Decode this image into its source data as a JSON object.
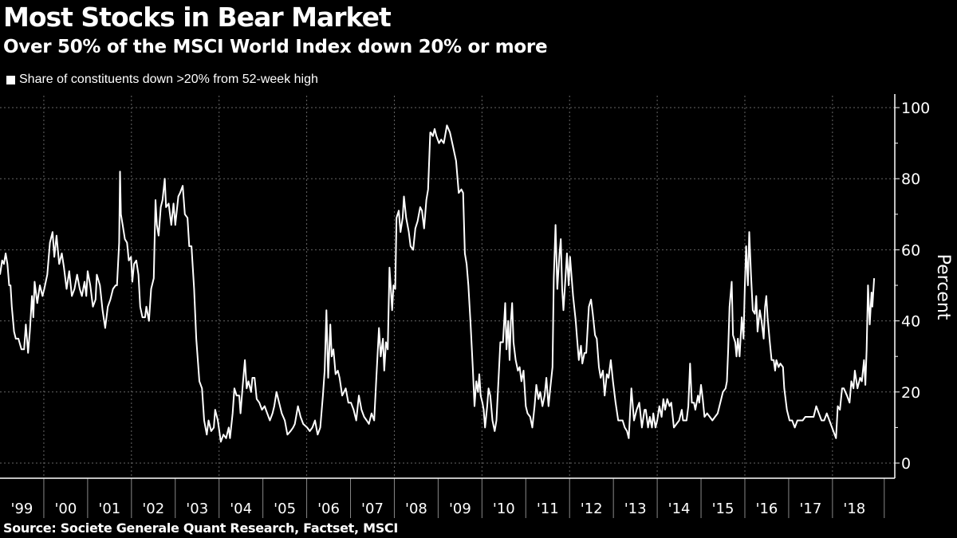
{
  "title": "Most Stocks in Bear Market",
  "subtitle": "Over 50% of the MSCI World Index down 20% or more",
  "source": "Source: Societe Generale Quant Research, Factset, MSCI",
  "chart_data": {
    "type": "line",
    "title": "Most Stocks in Bear Market",
    "subtitle": "Over 50% of the MSCI World Index down 20% or more",
    "ylabel": "Percent",
    "ylim": [
      0,
      100
    ],
    "yticks": [
      0,
      20,
      40,
      60,
      80,
      100
    ],
    "y_axis_side": "right",
    "xlim": [
      1999.0,
      2019.0
    ],
    "xtick_labels": [
      "'99",
      "'00",
      "'01",
      "'02",
      "'03",
      "'04",
      "'05",
      "'06",
      "'07",
      "'08",
      "'09",
      "'10",
      "'11",
      "'12",
      "'13",
      "'14",
      "'15",
      "'16",
      "'17",
      "'18"
    ],
    "grid": true,
    "legend_position": "top-left",
    "colors": {
      "background": "#000000",
      "line": "#ffffff",
      "grid": "#666666"
    },
    "series": [
      {
        "name": "Share of constituents down >20% from 52-week high",
        "x": [
          1999.0,
          1999.05,
          1999.09,
          1999.13,
          1999.17,
          1999.21,
          1999.24,
          1999.27,
          1999.32,
          1999.36,
          1999.42,
          1999.49,
          1999.55,
          1999.59,
          1999.64,
          1999.68,
          1999.73,
          1999.76,
          1999.79,
          1999.85,
          1999.91,
          1999.97,
          2000.01,
          2000.08,
          2000.14,
          2000.2,
          2000.24,
          2000.29,
          2000.35,
          2000.41,
          2000.46,
          2000.52,
          2000.58,
          2000.64,
          2000.7,
          2000.76,
          2000.82,
          2000.87,
          2000.93,
          2000.97,
          2001.0,
          2001.06,
          2001.12,
          2001.18,
          2001.21,
          2001.28,
          2001.34,
          2001.4,
          2001.46,
          2001.52,
          2001.58,
          2001.64,
          2001.67,
          2001.72,
          2001.74,
          2001.76,
          2001.8,
          2001.85,
          2001.9,
          2001.94,
          2001.99,
          2002.02,
          2002.06,
          2002.11,
          2002.16,
          2002.2,
          2002.25,
          2002.31,
          2002.34,
          2002.4,
          2002.45,
          2002.51,
          2002.55,
          2002.58,
          2002.62,
          2002.67,
          2002.71,
          2002.76,
          2002.79,
          2002.85,
          2002.91,
          2002.96,
          2003.0,
          2003.07,
          2003.11,
          2003.17,
          2003.22,
          2003.28,
          2003.32,
          2003.37,
          2003.43,
          2003.48,
          2003.55,
          2003.61,
          2003.66,
          2003.72,
          2003.76,
          2003.82,
          2003.88,
          2003.91,
          2003.97,
          2004.04,
          2004.1,
          2004.16,
          2004.22,
          2004.25,
          2004.31,
          2004.35,
          2004.4,
          2004.46,
          2004.49,
          2004.54,
          2004.59,
          2004.63,
          2004.67,
          2004.73,
          2004.76,
          2004.81,
          2004.86,
          2004.92,
          2004.98,
          2005.04,
          2005.1,
          2005.16,
          2005.22,
          2005.26,
          2005.31,
          2005.37,
          2005.43,
          2005.5,
          2005.56,
          2005.63,
          2005.69,
          2005.73,
          2005.8,
          2005.86,
          2005.92,
          2006.01,
          2006.07,
          2006.13,
          2006.19,
          2006.25,
          2006.31,
          2006.37,
          2006.41,
          2006.45,
          2006.49,
          2006.54,
          2006.57,
          2006.61,
          2006.66,
          2006.71,
          2006.75,
          2006.81,
          2006.89,
          2006.95,
          2007.01,
          2007.07,
          2007.13,
          2007.19,
          2007.25,
          2007.31,
          2007.37,
          2007.42,
          2007.48,
          2007.54,
          2007.59,
          2007.65,
          2007.69,
          2007.74,
          2007.77,
          2007.81,
          2007.85,
          2007.89,
          2007.92,
          2007.95,
          2007.98,
          2008.02,
          2008.05,
          2008.1,
          2008.14,
          2008.19,
          2008.22,
          2008.27,
          2008.33,
          2008.37,
          2008.43,
          2008.48,
          2008.53,
          2008.59,
          2008.63,
          2008.68,
          2008.73,
          2008.77,
          2008.82,
          2008.83,
          2008.88,
          2008.92,
          2008.96,
          2009.02,
          2009.07,
          2009.13,
          2009.2,
          2009.27,
          2009.34,
          2009.41,
          2009.47,
          2009.53,
          2009.57,
          2009.61,
          2009.65,
          2009.69,
          2009.74,
          2009.79,
          2009.83,
          2009.87,
          2009.91,
          2009.94,
          2009.97,
          2010.01,
          2010.04,
          2010.07,
          2010.12,
          2010.15,
          2010.19,
          2010.24,
          2010.29,
          2010.33,
          2010.38,
          2010.42,
          2010.48,
          2010.53,
          2010.56,
          2010.6,
          2010.63,
          2010.66,
          2010.69,
          2010.72,
          2010.77,
          2010.82,
          2010.86,
          2010.9,
          2010.95,
          2011.0,
          2011.04,
          2011.1,
          2011.15,
          2011.2,
          2011.24,
          2011.29,
          2011.33,
          2011.38,
          2011.43,
          2011.47,
          2011.52,
          2011.56,
          2011.61,
          2011.64,
          2011.68,
          2011.72,
          2011.77,
          2011.8,
          2011.83,
          2011.86,
          2011.89,
          2011.94,
          2011.98,
          2012.01,
          2012.08,
          2012.14,
          2012.17,
          2012.21,
          2012.26,
          2012.29,
          2012.34,
          2012.38,
          2012.44,
          2012.49,
          2012.53,
          2012.58,
          2012.62,
          2012.67,
          2012.71,
          2012.76,
          2012.8,
          2012.85,
          2012.89,
          2012.94,
          2012.99,
          2013.05,
          2013.11,
          2013.17,
          2013.21,
          2013.26,
          2013.31,
          2013.35,
          2013.41,
          2013.47,
          2013.53,
          2013.59,
          2013.65,
          2013.71,
          2013.74,
          2013.79,
          2013.83,
          2013.88,
          2013.91,
          2013.96,
          2014.0,
          2014.05,
          2014.1,
          2014.14,
          2014.18,
          2014.23,
          2014.28,
          2014.32,
          2014.38,
          2014.44,
          2014.5,
          2014.56,
          2014.59,
          2014.67,
          2014.71,
          2014.75,
          2014.79,
          2014.84,
          2014.87,
          2014.93,
          2014.96,
          2015.0,
          2015.04,
          2015.08,
          2015.14,
          2015.2,
          2015.26,
          2015.32,
          2015.38,
          2015.44,
          2015.5,
          2015.56,
          2015.59,
          2015.62,
          2015.65,
          2015.7,
          2015.73,
          2015.78,
          2015.81,
          2015.84,
          2015.88,
          2015.93,
          2015.97,
          2016.0,
          2016.03,
          2016.07,
          2016.1,
          2016.14,
          2016.18,
          2016.23,
          2016.26,
          2016.29,
          2016.34,
          2016.38,
          2016.43,
          2016.46,
          2016.49,
          2016.52,
          2016.57,
          2016.61,
          2016.66,
          2016.69,
          2016.72,
          2016.77,
          2016.81,
          2016.87,
          2016.9,
          2016.96,
          2017.02,
          2017.08,
          2017.14,
          2017.2,
          2017.26,
          2017.32,
          2017.38,
          2017.45,
          2017.51,
          2017.57,
          2017.63,
          2017.69,
          2017.75,
          2017.81,
          2017.87,
          2017.93,
          2017.99,
          2018.05,
          2018.08,
          2018.12,
          2018.17,
          2018.22,
          2018.26,
          2018.33,
          2018.39,
          2018.43,
          2018.48,
          2018.51,
          2018.57,
          2018.63,
          2018.67,
          2018.72,
          2018.75,
          2018.78,
          2018.81,
          2018.85,
          2018.89,
          2018.91,
          2018.95
        ],
        "y": [
          53,
          57,
          56,
          59,
          56,
          50,
          50,
          44,
          37,
          35,
          35,
          32,
          32,
          39,
          31,
          37,
          47,
          41,
          51,
          45,
          50,
          47,
          49,
          53,
          62,
          65,
          58,
          64,
          56,
          59,
          55,
          49,
          54,
          47,
          49,
          53,
          49,
          47,
          51,
          47,
          54,
          50,
          44,
          46,
          53,
          50,
          43,
          38,
          44,
          46,
          49,
          50,
          50,
          62,
          82,
          70,
          67,
          63,
          62,
          57,
          58,
          51,
          56,
          57,
          53,
          44,
          41,
          41,
          44,
          40,
          49,
          52,
          74,
          67,
          64,
          72,
          74,
          80,
          72,
          73,
          67,
          73,
          67,
          75,
          76,
          78,
          70,
          69,
          61,
          61,
          49,
          35,
          23,
          21,
          12,
          8,
          12,
          9,
          10,
          15,
          12,
          6,
          8,
          7,
          10,
          7,
          14,
          21,
          19,
          19,
          14,
          22,
          29,
          21,
          23,
          20,
          24,
          24,
          18,
          17,
          15,
          16,
          14,
          12,
          14,
          16,
          20,
          17,
          14,
          12,
          8,
          9,
          10,
          11,
          16,
          13,
          11,
          10,
          9,
          10,
          12,
          8,
          10,
          19,
          26,
          43,
          24,
          39,
          30,
          32,
          25,
          26,
          24,
          19,
          21,
          17,
          17,
          15,
          12,
          19,
          15,
          13,
          12,
          11,
          14,
          12,
          24,
          38,
          30,
          35,
          26,
          34,
          32,
          55,
          49,
          43,
          50,
          49,
          69,
          71,
          65,
          69,
          75,
          69,
          65,
          61,
          60,
          66,
          68,
          72,
          71,
          66,
          74,
          77,
          93,
          93,
          92,
          94,
          92,
          90,
          91,
          90,
          95,
          93,
          89,
          85,
          76,
          77,
          76,
          59,
          56,
          50,
          39,
          27,
          16,
          23,
          20,
          25,
          19,
          17,
          15,
          10,
          16,
          21,
          19,
          12,
          9,
          12,
          24,
          34,
          34,
          45,
          32,
          40,
          29,
          40,
          45,
          34,
          29,
          26,
          27,
          23,
          26,
          16,
          14,
          13,
          10,
          16,
          22,
          18,
          20,
          16,
          19,
          24,
          16,
          21,
          27,
          52,
          67,
          49,
          59,
          63,
          49,
          43,
          49,
          59,
          50,
          58,
          47,
          40,
          35,
          29,
          33,
          28,
          31,
          31,
          44,
          46,
          42,
          36,
          35,
          27,
          24,
          26,
          19,
          25,
          24,
          29,
          23,
          17,
          12,
          12,
          12,
          10,
          9,
          7,
          21,
          12,
          15,
          17,
          10,
          15,
          15,
          10,
          13,
          10,
          14,
          10,
          12,
          16,
          13,
          18,
          15,
          18,
          16,
          17,
          10,
          11,
          12,
          15,
          12,
          12,
          16,
          28,
          17,
          17,
          15,
          19,
          17,
          22,
          18,
          13,
          14,
          13,
          12,
          13,
          14,
          17,
          20,
          21,
          23,
          32,
          44,
          51,
          36,
          34,
          30,
          35,
          30,
          41,
          35,
          50,
          61,
          50,
          65,
          53,
          43,
          42,
          47,
          37,
          43,
          40,
          35,
          44,
          47,
          41,
          34,
          29,
          29,
          26,
          29,
          27,
          28,
          27,
          21,
          15,
          12,
          12,
          10,
          12,
          12,
          12,
          13,
          13,
          13,
          13,
          16,
          14,
          12,
          12,
          14,
          12,
          10,
          8,
          7,
          16,
          15,
          21,
          21,
          19,
          17,
          23,
          21,
          26,
          21,
          24,
          23,
          29,
          22,
          32,
          50,
          39,
          48,
          44,
          52
        ]
      }
    ]
  }
}
